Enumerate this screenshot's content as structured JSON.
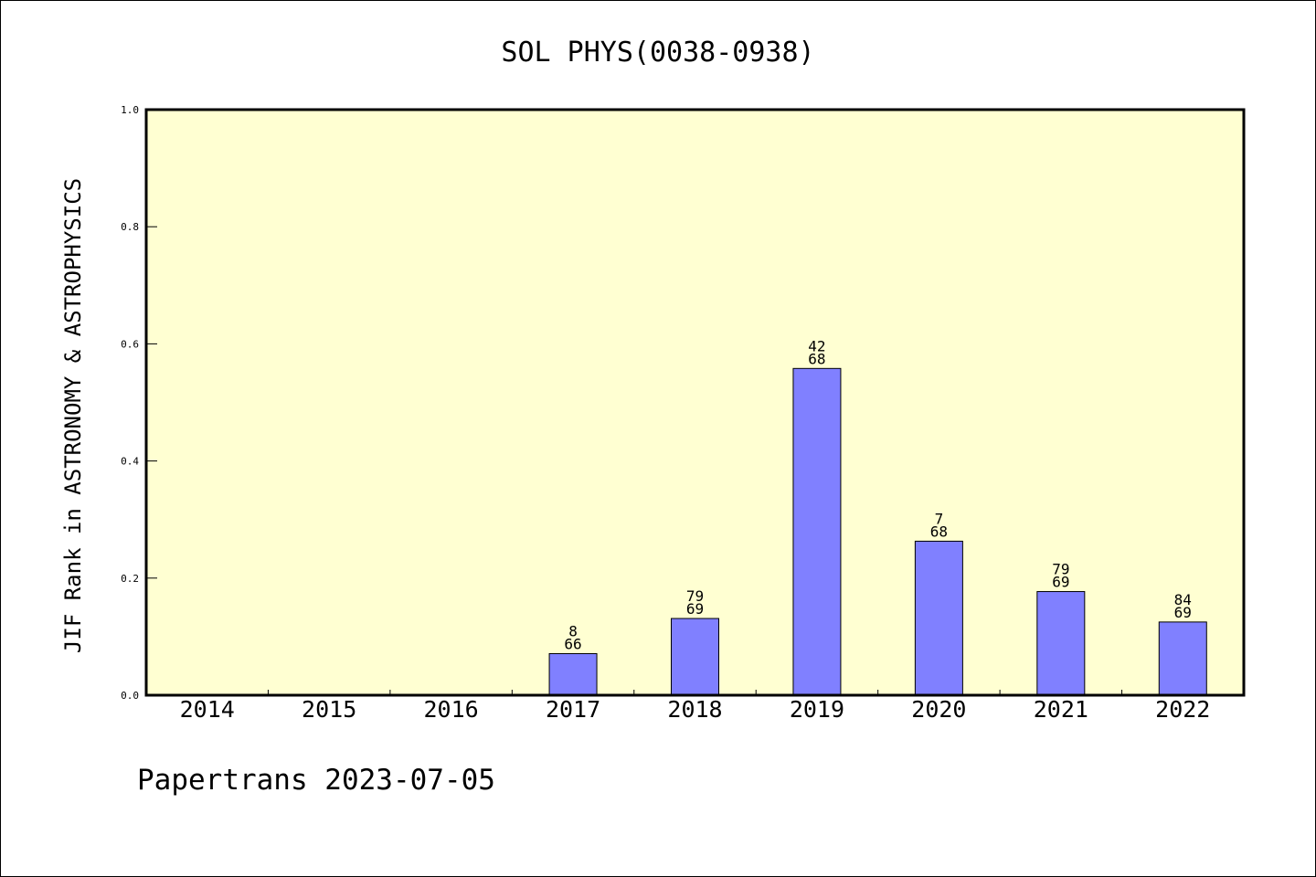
{
  "chart_data": {
    "type": "bar",
    "title": "SOL PHYS(0038-0938)",
    "xlabel": "",
    "ylabel": "JIF Rank in ASTRONOMY & ASTROPHYSICS",
    "categories": [
      "2014",
      "2015",
      "2016",
      "2017",
      "2018",
      "2019",
      "2020",
      "2021",
      "2022"
    ],
    "values": [
      null,
      null,
      null,
      0.071,
      0.131,
      0.558,
      0.263,
      0.177,
      0.125
    ],
    "bar_labels": [
      null,
      null,
      null,
      {
        "top": "8",
        "bottom": "66"
      },
      {
        "top": "79",
        "bottom": "69"
      },
      {
        "top": "42",
        "bottom": "68"
      },
      {
        "top": "7",
        "bottom": "68"
      },
      {
        "top": "79",
        "bottom": "69"
      },
      {
        "top": "84",
        "bottom": "69"
      }
    ],
    "ylim": [
      0,
      1.0
    ],
    "yticks": [
      "0.0",
      "0.2",
      "0.4",
      "0.6",
      "0.8",
      "1.0"
    ],
    "grid": false,
    "legend": "none",
    "colors": {
      "plot_background": "#ffffd2",
      "bar_fill": "#8080ff",
      "bar_stroke": "#000000"
    }
  },
  "footer": {
    "text": "Papertrans 2023-07-05"
  }
}
